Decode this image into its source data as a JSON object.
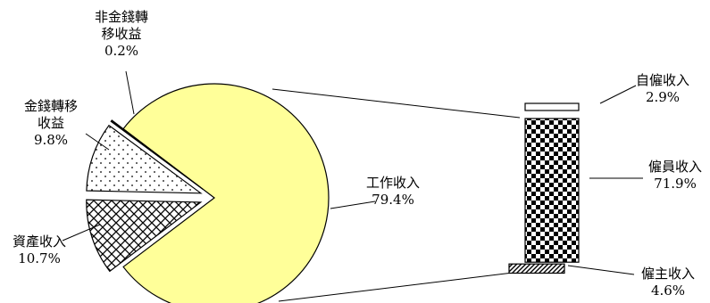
{
  "chart_data": {
    "type": "pie",
    "variant": "bar-of-pie",
    "pie": {
      "slices": [
        {
          "label": [
            "工作收入"
          ],
          "value": 79.4,
          "display": "79.4%",
          "pattern": "solid-light-yellow",
          "exploded": false
        },
        {
          "label": [
            "資產收入"
          ],
          "value": 10.7,
          "display": "10.7%",
          "pattern": "crosshatch",
          "exploded": true
        },
        {
          "label": [
            "金錢轉移",
            "收益"
          ],
          "value": 9.8,
          "display": "9.8%",
          "pattern": "dots",
          "exploded": true
        },
        {
          "label": [
            "非金錢轉",
            "移收益"
          ],
          "value": 0.2,
          "display": "0.2%",
          "pattern": "dark-hatch",
          "exploded": true
        }
      ]
    },
    "bar": {
      "source_slice": "工作收入",
      "segments": [
        {
          "label": "自僱收入",
          "value": 2.9,
          "display": "2.9%",
          "pattern": "white"
        },
        {
          "label": "僱員收入",
          "value": 71.9,
          "display": "71.9%",
          "pattern": "checkerboard"
        },
        {
          "label": "僱主收入",
          "value": 4.6,
          "display": "4.6%",
          "pattern": "diagonal-stripes"
        }
      ]
    },
    "colors": {
      "work": "#ffff99",
      "asset_fill": "#ffffff",
      "stroke": "#000000",
      "checker": "#000000"
    }
  }
}
